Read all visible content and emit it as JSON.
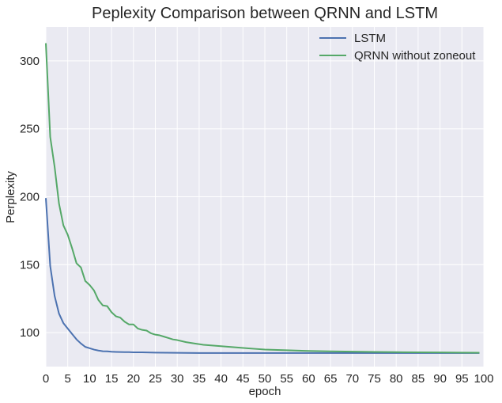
{
  "chart_data": {
    "type": "line",
    "title": "Peplexity Comparison between QRNN and LSTM",
    "xlabel": "epoch",
    "ylabel": "Perplexity",
    "xlim": [
      0,
      100
    ],
    "ylim": [
      75,
      325
    ],
    "xticks": [
      "0",
      "5",
      "10",
      "15",
      "20",
      "25",
      "30",
      "35",
      "40",
      "45",
      "50",
      "55",
      "60",
      "65",
      "70",
      "75",
      "80",
      "85",
      "90",
      "95",
      "100"
    ],
    "yticks": [
      "100",
      "150",
      "200",
      "250",
      "300"
    ],
    "grid": true,
    "legend_position": "top-right",
    "background_color": "#eaeaf2",
    "series": [
      {
        "name": "LSTM",
        "color": "#4c72b0",
        "x": [
          0,
          1,
          2,
          3,
          4,
          5,
          6,
          7,
          8,
          9,
          10,
          11,
          12,
          13,
          14,
          15,
          16,
          17,
          18,
          19,
          20,
          22,
          25,
          30,
          35,
          40,
          45,
          50,
          55,
          60,
          65,
          70,
          75,
          80,
          85,
          90,
          95,
          99
        ],
        "values": [
          199,
          149,
          127,
          114,
          107,
          103,
          99,
          95,
          92,
          89.5,
          88.5,
          87.5,
          86.8,
          86.3,
          86.2,
          85.9,
          85.8,
          85.7,
          85.6,
          85.6,
          85.5,
          85.5,
          85.3,
          85.1,
          85,
          85,
          85,
          85,
          85,
          85,
          85,
          85,
          85,
          85,
          85,
          85,
          85,
          85
        ]
      },
      {
        "name": "QRNN without zoneout",
        "color": "#55a868",
        "x": [
          0,
          1,
          2,
          3,
          4,
          5,
          6,
          7,
          8,
          9,
          10,
          11,
          12,
          13,
          14,
          15,
          16,
          17,
          18,
          19,
          20,
          21,
          22,
          23,
          24,
          25,
          26,
          27,
          28,
          29,
          30,
          32,
          34,
          36,
          38,
          40,
          42,
          44,
          46,
          48,
          50,
          55,
          60,
          65,
          70,
          75,
          80,
          85,
          90,
          95,
          99
        ],
        "values": [
          313,
          244,
          222,
          195,
          179,
          172,
          162,
          151,
          148,
          138,
          135,
          131,
          124,
          120,
          119.5,
          115,
          112,
          111,
          108,
          106,
          106,
          103,
          102,
          101.5,
          99.5,
          98.5,
          98,
          97,
          96,
          95,
          94.5,
          93,
          92,
          91,
          90.5,
          90,
          89.5,
          89,
          88.5,
          88,
          87.5,
          87,
          86.5,
          86.2,
          86,
          85.8,
          85.6,
          85.5,
          85.4,
          85.3,
          85.2
        ]
      }
    ]
  }
}
